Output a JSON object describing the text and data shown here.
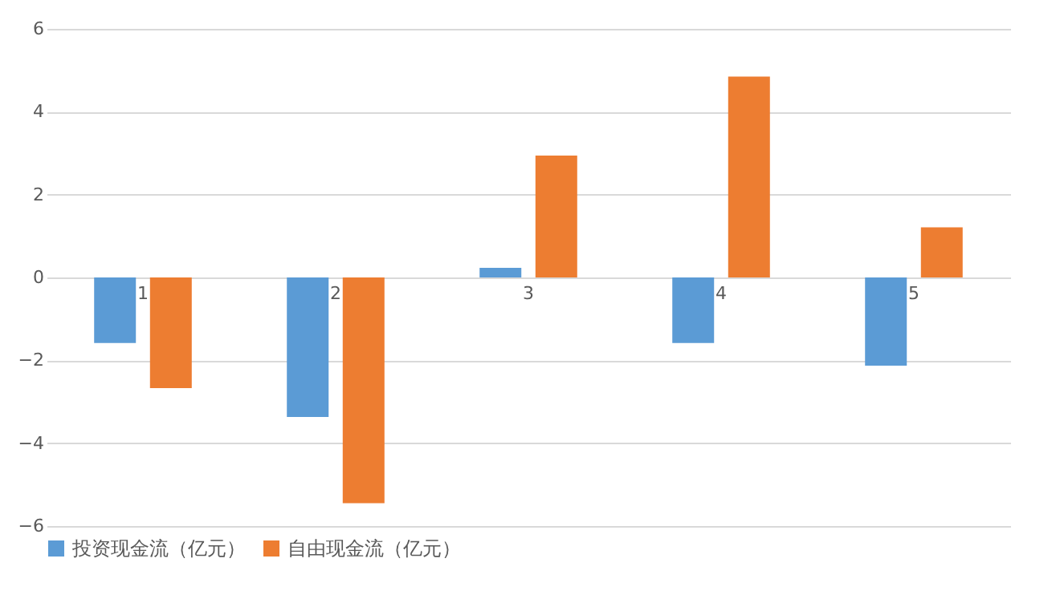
{
  "chart_data": {
    "type": "bar",
    "categories": [
      "1",
      "2",
      "3",
      "4",
      "5"
    ],
    "series": [
      {
        "name": "投资现金流（亿元）",
        "color": "#5b9bd5",
        "values": [
          -1.58,
          -3.37,
          0.23,
          -1.58,
          -2.13
        ]
      },
      {
        "name": "自由现金流（亿元）",
        "color": "#ed7d31",
        "values": [
          -2.67,
          -5.45,
          2.94,
          4.85,
          1.21
        ]
      }
    ],
    "ylim": [
      -6,
      6
    ],
    "yticks": [
      -6,
      -4,
      -2,
      0,
      2,
      4,
      6
    ],
    "grid": "y",
    "legend": "bottom"
  }
}
